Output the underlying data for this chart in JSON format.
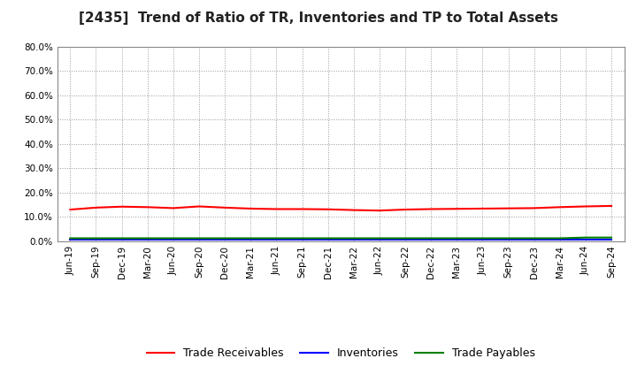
{
  "title": "[2435]  Trend of Ratio of TR, Inventories and TP to Total Assets",
  "x_labels": [
    "Jun-19",
    "Sep-19",
    "Dec-19",
    "Mar-20",
    "Jun-20",
    "Sep-20",
    "Dec-20",
    "Mar-21",
    "Jun-21",
    "Sep-21",
    "Dec-21",
    "Mar-22",
    "Jun-22",
    "Sep-22",
    "Dec-22",
    "Mar-23",
    "Jun-23",
    "Sep-23",
    "Dec-23",
    "Mar-24",
    "Jun-24",
    "Sep-24"
  ],
  "trade_receivables": [
    0.13,
    0.138,
    0.142,
    0.14,
    0.136,
    0.143,
    0.138,
    0.134,
    0.132,
    0.132,
    0.131,
    0.128,
    0.126,
    0.13,
    0.132,
    0.133,
    0.134,
    0.135,
    0.136,
    0.14,
    0.143,
    0.145
  ],
  "inventories": [
    0.008,
    0.008,
    0.008,
    0.008,
    0.008,
    0.008,
    0.008,
    0.008,
    0.008,
    0.008,
    0.008,
    0.008,
    0.008,
    0.008,
    0.008,
    0.008,
    0.008,
    0.008,
    0.008,
    0.008,
    0.008,
    0.008
  ],
  "trade_payables": [
    0.012,
    0.012,
    0.012,
    0.012,
    0.012,
    0.012,
    0.012,
    0.012,
    0.012,
    0.012,
    0.012,
    0.012,
    0.012,
    0.012,
    0.012,
    0.012,
    0.012,
    0.012,
    0.012,
    0.012,
    0.015,
    0.015
  ],
  "tr_color": "#FF0000",
  "inv_color": "#0000FF",
  "tp_color": "#008000",
  "ylim": [
    0.0,
    0.8
  ],
  "yticks": [
    0.0,
    0.1,
    0.2,
    0.3,
    0.4,
    0.5,
    0.6,
    0.7,
    0.8
  ],
  "bg_color": "#FFFFFF",
  "plot_bg_color": "#FFFFFF",
  "grid_color": "#999999",
  "legend_labels": [
    "Trade Receivables",
    "Inventories",
    "Trade Payables"
  ],
  "title_fontsize": 11,
  "tick_fontsize": 7.5,
  "legend_fontsize": 9
}
